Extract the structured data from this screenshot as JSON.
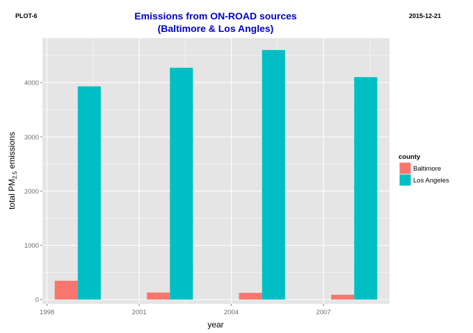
{
  "header": {
    "plot_label": "PLOT-6",
    "date_label": "2015-12-21"
  },
  "chart_data": {
    "type": "bar",
    "title_line1": "Emissions from ON-ROAD sources",
    "title_line2": "(Baltimore & Los Angles)",
    "xlabel": "year",
    "ylabel_main": "total PM",
    "ylabel_sub": "2.5",
    "ylabel_tail": " emissions",
    "x_ticks": [
      "1998",
      "2001",
      "2004",
      "2007"
    ],
    "y_ticks": [
      0,
      1000,
      2000,
      3000,
      4000
    ],
    "ylim": [
      -80,
      4820
    ],
    "xlim": [
      1997.85,
      2009.15
    ],
    "categories": [
      "1999",
      "2002",
      "2005",
      "2008"
    ],
    "x": [
      1999,
      2002,
      2005,
      2008
    ],
    "bar_width_years": 1.5,
    "grid": true,
    "series": [
      {
        "name": "Baltimore",
        "color": "#f8766d",
        "values": [
          346,
          129,
          123,
          88
        ]
      },
      {
        "name": "Los Angeles",
        "color": "#00bfc4",
        "values": [
          3931,
          4274,
          4601,
          4101
        ]
      }
    ],
    "legend": {
      "title": "county",
      "position": "right"
    },
    "panel_color": "#e5e5e5",
    "grid_color": "#ffffff"
  }
}
